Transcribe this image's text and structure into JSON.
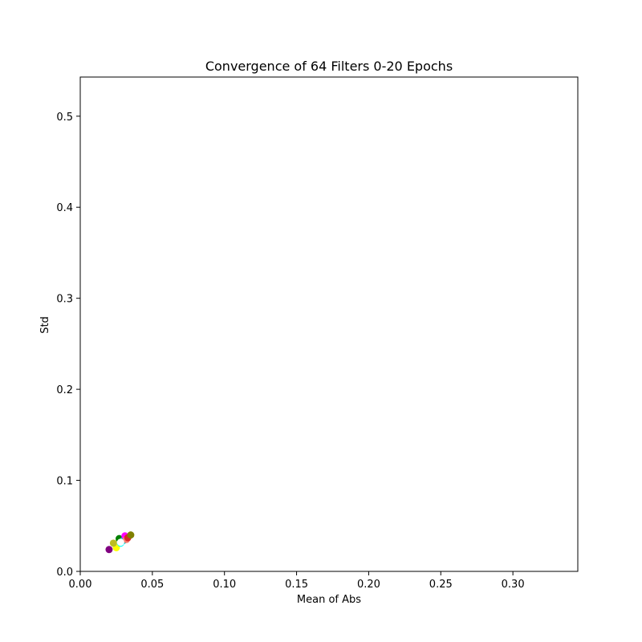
{
  "chart_data": {
    "type": "scatter",
    "title": "Convergence of 64 Filters 0-20 Epochs",
    "xlabel": "Mean of Abs",
    "ylabel": "Std",
    "xlim": [
      0.0,
      0.345
    ],
    "ylim": [
      0.0,
      0.543
    ],
    "xticks": [
      "0.00",
      "0.05",
      "0.10",
      "0.15",
      "0.20",
      "0.25",
      "0.30"
    ],
    "yticks": [
      "0.0",
      "0.1",
      "0.2",
      "0.3",
      "0.4",
      "0.5"
    ],
    "grid": false,
    "legend": "none",
    "points": [
      {
        "x": 0.02,
        "y": 0.024,
        "color": "#800080"
      },
      {
        "x": 0.025,
        "y": 0.026,
        "color": "#ffff00"
      },
      {
        "x": 0.023,
        "y": 0.031,
        "color": "#bcbd22"
      },
      {
        "x": 0.027,
        "y": 0.036,
        "color": "#008000"
      },
      {
        "x": 0.028,
        "y": 0.031,
        "color": "#00ffff"
      },
      {
        "x": 0.03,
        "y": 0.034,
        "color": "#00ced1"
      },
      {
        "x": 0.031,
        "y": 0.039,
        "color": "#ff00ff"
      },
      {
        "x": 0.032,
        "y": 0.035,
        "color": "#fa8072"
      },
      {
        "x": 0.033,
        "y": 0.037,
        "color": "#d62728"
      },
      {
        "x": 0.035,
        "y": 0.04,
        "color": "#808000"
      },
      {
        "x": 0.028,
        "y": 0.032,
        "color": "#ffffff"
      }
    ]
  }
}
